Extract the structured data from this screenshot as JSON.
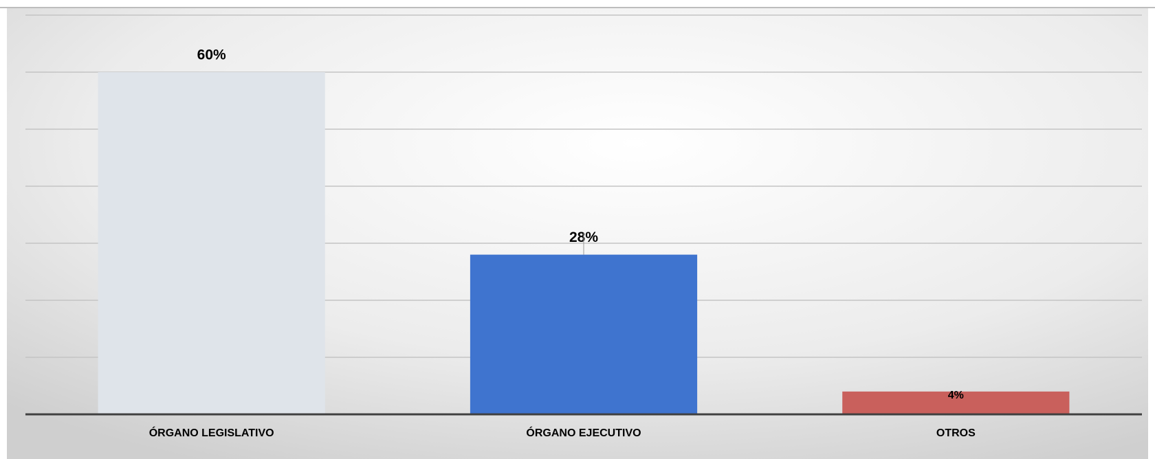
{
  "chart_data": {
    "type": "bar",
    "categories": [
      "ÓRGANO LEGISLATIVO",
      "ÓRGANO EJECUTIVO",
      "OTROS"
    ],
    "values": [
      60,
      28,
      4
    ],
    "value_labels": [
      "60%",
      "28%",
      "4%"
    ],
    "colors": [
      "#dfe4ea",
      "#3f74cf",
      "#c9605c"
    ],
    "ylim": [
      0,
      70
    ],
    "yticks": [
      0,
      10,
      20,
      30,
      40,
      50,
      60,
      70
    ],
    "grid": true
  }
}
